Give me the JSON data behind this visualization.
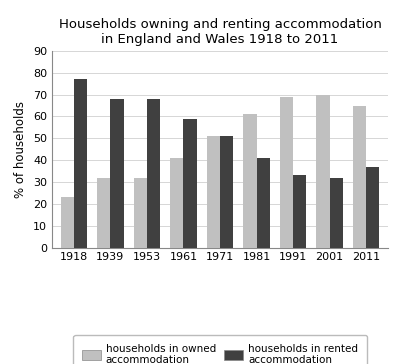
{
  "title": "Households owning and renting accommodation\nin England and Wales 1918 to 2011",
  "ylabel": "% of households",
  "years": [
    1918,
    1939,
    1953,
    1961,
    1971,
    1981,
    1991,
    2001,
    2011
  ],
  "owned": [
    23,
    32,
    32,
    41,
    51,
    61,
    69,
    70,
    65
  ],
  "rented": [
    77,
    68,
    68,
    59,
    51,
    41,
    33,
    32,
    37
  ],
  "owned_color": "#c0c0c0",
  "rented_color": "#404040",
  "ylim": [
    0,
    90
  ],
  "yticks": [
    0,
    10,
    20,
    30,
    40,
    50,
    60,
    70,
    80,
    90
  ],
  "bar_width": 0.36,
  "legend_owned": "households in owned\naccommodation",
  "legend_rented": "households in rented\naccommodation",
  "background_color": "#ffffff",
  "grid_color": "#d0d0d0",
  "title_fontsize": 9.5,
  "label_fontsize": 8.5,
  "tick_fontsize": 8,
  "legend_fontsize": 7.5
}
